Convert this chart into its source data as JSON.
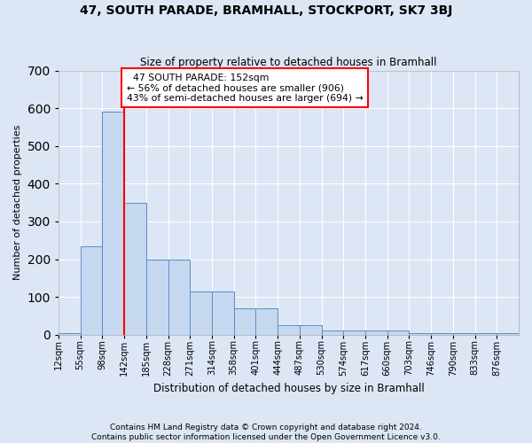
{
  "title": "47, SOUTH PARADE, BRAMHALL, STOCKPORT, SK7 3BJ",
  "subtitle": "Size of property relative to detached houses in Bramhall",
  "xlabel": "Distribution of detached houses by size in Bramhall",
  "ylabel": "Number of detached properties",
  "footnote": "Contains HM Land Registry data © Crown copyright and database right 2024.\nContains public sector information licensed under the Open Government Licence v3.0.",
  "bin_labels": [
    "12sqm",
    "55sqm",
    "98sqm",
    "142sqm",
    "185sqm",
    "228sqm",
    "271sqm",
    "314sqm",
    "358sqm",
    "401sqm",
    "444sqm",
    "487sqm",
    "530sqm",
    "574sqm",
    "617sqm",
    "660sqm",
    "703sqm",
    "746sqm",
    "790sqm",
    "833sqm",
    "876sqm"
  ],
  "bar_heights": [
    5,
    235,
    590,
    350,
    200,
    200,
    115,
    115,
    70,
    70,
    25,
    25,
    12,
    12,
    10,
    10,
    5,
    5,
    5,
    5,
    5
  ],
  "bar_color": "#c5d8f0",
  "bar_edge_color": "#5b8dc8",
  "vline_x_idx": 3,
  "vline_color": "red",
  "annotation_text": "  47 SOUTH PARADE: 152sqm\n← 56% of detached houses are smaller (906)\n43% of semi-detached houses are larger (694) →",
  "annotation_box_color": "white",
  "annotation_box_edge": "red",
  "ylim": [
    0,
    700
  ],
  "yticks": [
    0,
    100,
    200,
    300,
    400,
    500,
    600,
    700
  ],
  "bg_color": "#dce6f5",
  "plot_bg_color": "#dce6f5",
  "bin_edges_raw": [
    12,
    55,
    98,
    142,
    185,
    228,
    271,
    314,
    358,
    401,
    444,
    487,
    530,
    574,
    617,
    660,
    703,
    746,
    790,
    833,
    876,
    919
  ]
}
